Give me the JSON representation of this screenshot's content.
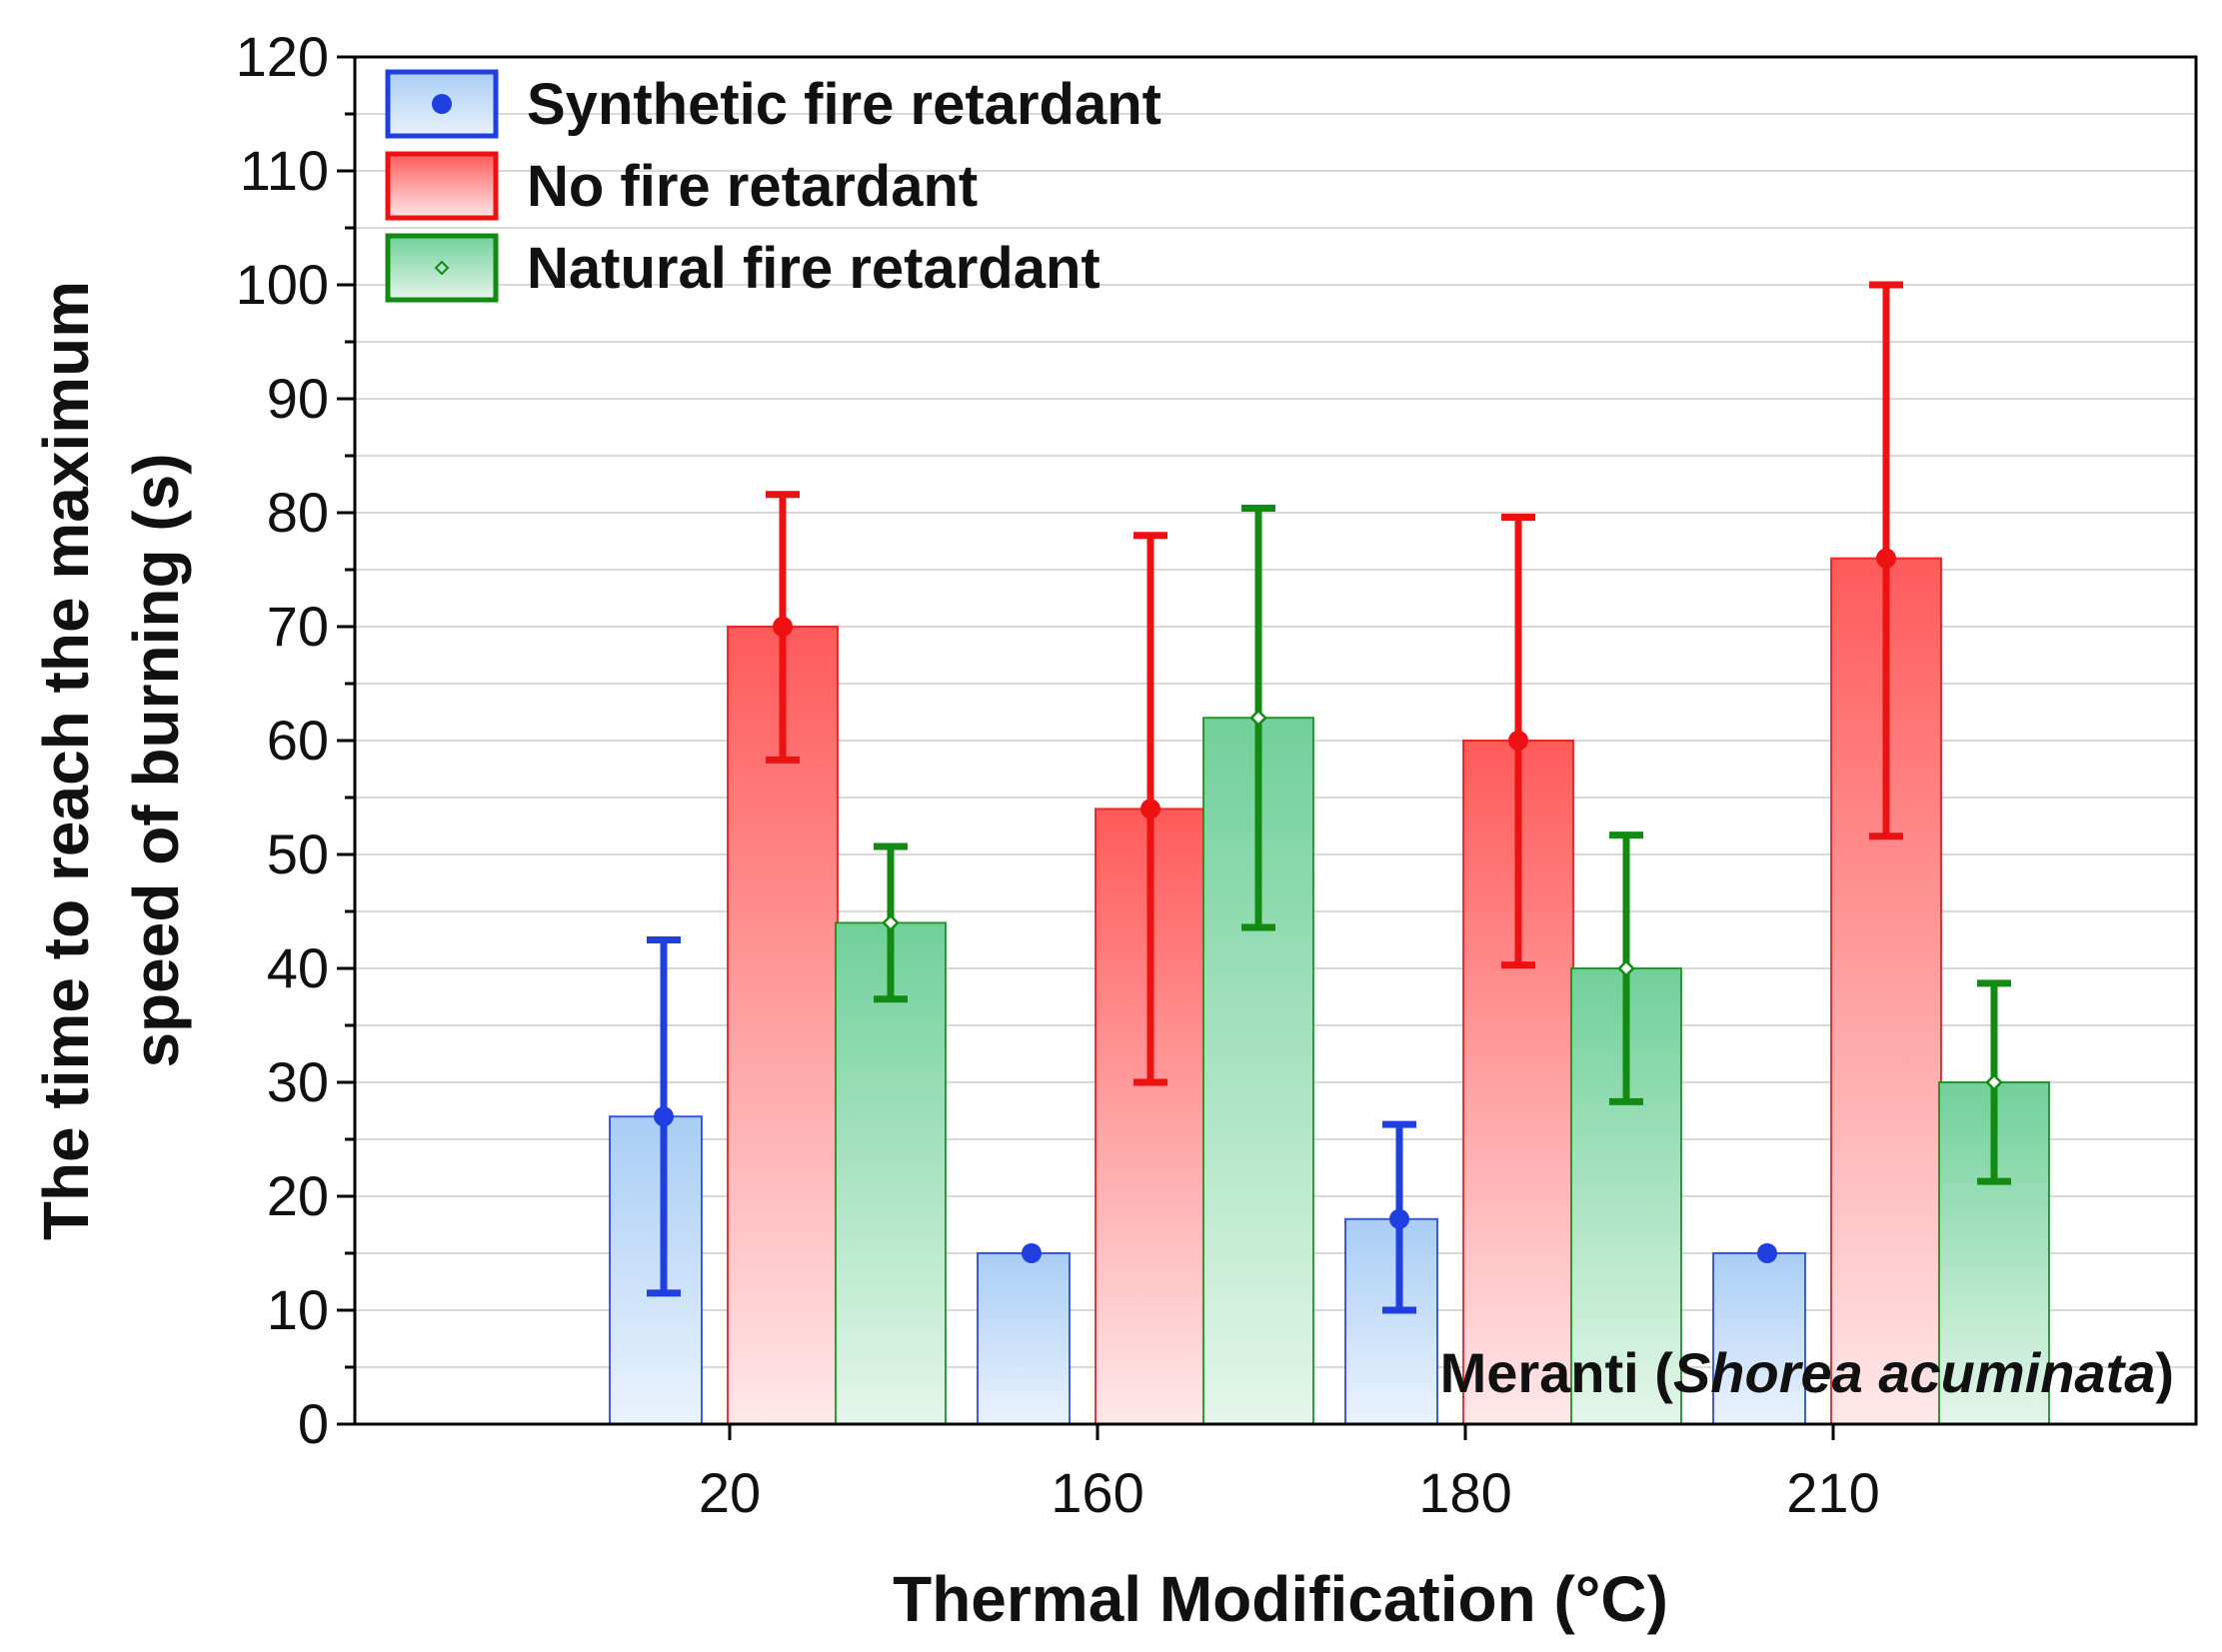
{
  "chart_data": {
    "type": "bar",
    "title": "",
    "xlabel": "Thermal Modification (°C)",
    "ylabel_line1": "The time to reach the maximum",
    "ylabel_line2": "speed of burning (s)",
    "ylim": [
      0,
      120
    ],
    "ytick_step": 10,
    "categories": [
      "20",
      "160",
      "180",
      "210"
    ],
    "series": [
      {
        "name": "Synthetic fire retardant",
        "values": [
          27,
          15,
          18,
          15
        ],
        "error_low": [
          11.5,
          15,
          10,
          15
        ],
        "error_high": [
          42.5,
          15,
          26.3,
          15
        ],
        "color": "#1f3fe0",
        "fill_top": "#a9cdf5",
        "fill_bottom": "#eaf3fd",
        "marker": "dot"
      },
      {
        "name": "No fire retardant",
        "values": [
          70,
          54,
          60,
          76
        ],
        "error_low": [
          58.3,
          30,
          40.3,
          51.6
        ],
        "error_high": [
          81.6,
          78,
          79.6,
          100
        ],
        "color": "#ee1111",
        "fill_top": "#ff5a5a",
        "fill_bottom": "#ffe8ea",
        "marker": "dot"
      },
      {
        "name": "Natural fire retardant",
        "values": [
          44,
          62,
          40,
          30
        ],
        "error_low": [
          37.3,
          43.6,
          28.3,
          21.3
        ],
        "error_high": [
          50.7,
          80.4,
          51.7,
          38.7
        ],
        "color": "#138a13",
        "fill_top": "#70d09a",
        "fill_bottom": "#e4f6ea",
        "marker": "diamond"
      }
    ],
    "legend_position": "top-left",
    "grid": true,
    "annotation_prefix": "Meranti (",
    "annotation_italic": "Shorea acuminata",
    "annotation_suffix": ")"
  }
}
